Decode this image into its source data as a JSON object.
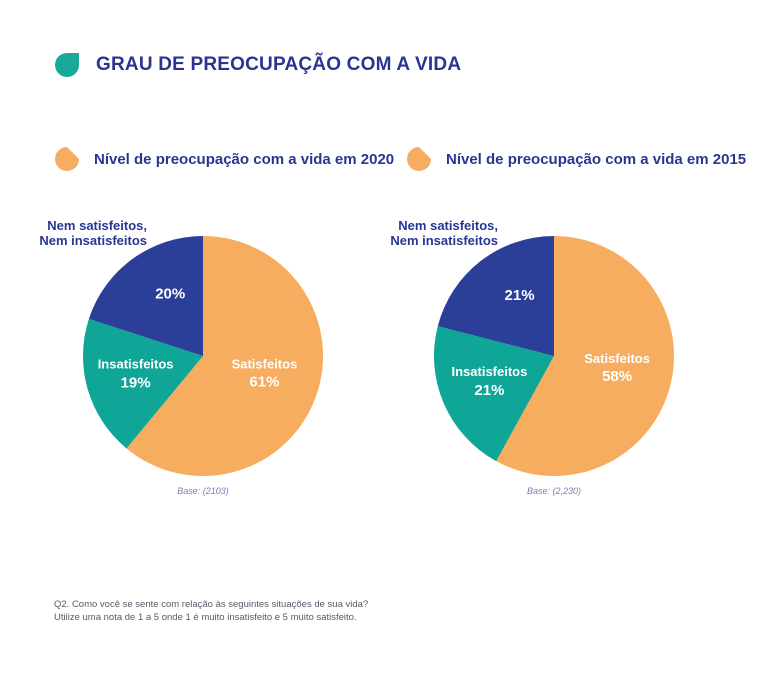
{
  "title": "GRAU DE PREOCUPAÇÃO COM A VIDA",
  "colors": {
    "title_icon": "#1aa89a",
    "satisfeitos": "#f7ad5f",
    "insatisfeitos": "#0fa597",
    "nem": "#2b3f98",
    "text_primary": "#2a3591"
  },
  "legend": [
    {
      "label": "Nível de preocupação com a vida em 2020",
      "icon": "orange-drop-icon"
    },
    {
      "label": "Nível de preocupação com a vida em 2015",
      "icon": "orange-drop-icon"
    }
  ],
  "chart_data": [
    {
      "type": "pie",
      "title": "Nível de preocupação com a vida em 2020",
      "slices": [
        {
          "label": "Satisfeitos",
          "value": 61,
          "display": "61%",
          "color": "#f7ad5f"
        },
        {
          "label": "Insatisfeitos",
          "value": 19,
          "display": "19%",
          "color": "#0fa597"
        },
        {
          "label": "Nem satisfeitos, Nem insatisfeitos",
          "label_lines": [
            "Nem satisfeitos,",
            "Nem insatisfeitos"
          ],
          "value": 20,
          "display": "20%",
          "color": "#2b3f98"
        }
      ],
      "base": "Base: (2103)"
    },
    {
      "type": "pie",
      "title": "Nível de preocupação com a vida em 2015",
      "slices": [
        {
          "label": "Satisfeitos",
          "value": 58,
          "display": "58%",
          "color": "#f7ad5f"
        },
        {
          "label": "Insatisfeitos",
          "value": 21,
          "display": "21%",
          "color": "#0fa597"
        },
        {
          "label": "Nem satisfeitos, Nem insatisfeitos",
          "label_lines": [
            "Nem satisfeitos,",
            "Nem insatisfeitos"
          ],
          "value": 21,
          "display": "21%",
          "color": "#2b3f98"
        }
      ],
      "base": "Base: (2,230)"
    }
  ],
  "footnote": {
    "line1": "Q2. Como você se sente com relação às seguintes situações de sua vida?",
    "line2": "Utilize uma nota de 1 a 5 onde 1 é muito insatisfeito e 5 muito satisfeito."
  }
}
